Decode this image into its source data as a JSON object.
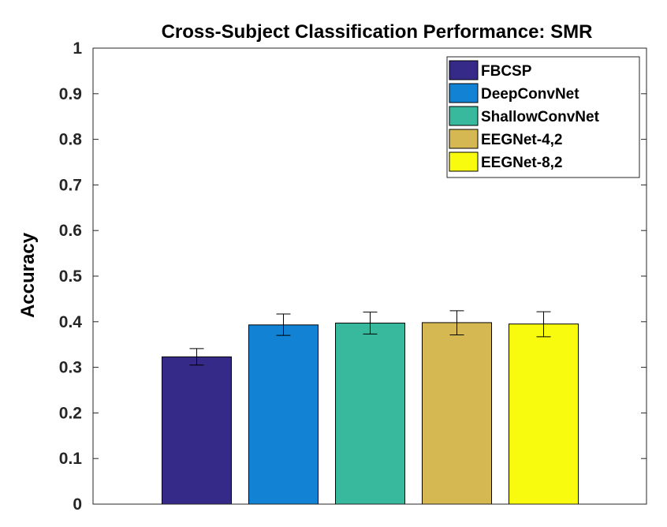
{
  "chart_data": {
    "type": "bar",
    "title": "Cross-Subject Classification Performance: SMR",
    "xlabel": "",
    "ylabel": "Accuracy",
    "ylim": [
      0,
      1
    ],
    "yticks": [
      "0",
      "0.1",
      "0.2",
      "0.3",
      "0.4",
      "0.5",
      "0.6",
      "0.7",
      "0.8",
      "0.9",
      "1"
    ],
    "grid": false,
    "legend_position": "top-right",
    "bars": [
      {
        "name": "FBCSP",
        "value": 0.323,
        "err_low": 0.305,
        "err_high": 0.341,
        "color": "#352a87"
      },
      {
        "name": "DeepConvNet",
        "value": 0.393,
        "err_low": 0.37,
        "err_high": 0.417,
        "color": "#1282d4"
      },
      {
        "name": "ShallowConvNet",
        "value": 0.397,
        "err_low": 0.373,
        "err_high": 0.421,
        "color": "#38b99e"
      },
      {
        "name": "EEGNet-4,2",
        "value": 0.398,
        "err_low": 0.371,
        "err_high": 0.424,
        "color": "#d6b853"
      },
      {
        "name": "EEGNet-8,2",
        "value": 0.395,
        "err_low": 0.367,
        "err_high": 0.422,
        "color": "#f9fb0e"
      }
    ]
  }
}
